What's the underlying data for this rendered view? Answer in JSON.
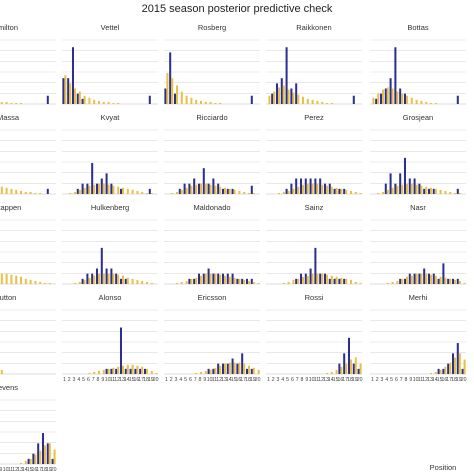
{
  "chart_data": {
    "type": "bar",
    "title": "2015 season posterior predictive check",
    "xlabel": "Position",
    "ylabel": "",
    "x": [
      1,
      2,
      3,
      4,
      5,
      6,
      7,
      8,
      9,
      10,
      11,
      12,
      13,
      14,
      15,
      16,
      17,
      18,
      19,
      20
    ],
    "x_tick_labels": [
      "1",
      "2",
      "3",
      "4",
      "5",
      "6",
      "7",
      "8",
      "9",
      "10",
      "11",
      "12",
      "13",
      "14",
      "15",
      "16",
      "17",
      "18",
      "19",
      "20"
    ],
    "ylim": [
      0,
      0.62
    ],
    "grid": true,
    "colors": {
      "observed": "#2b2f8f",
      "predicted": "#e9c046"
    },
    "panels": [
      {
        "name": "Hamilton",
        "label": "milton",
        "observed": [
          0.25,
          0.2,
          0.15,
          0.15,
          0.05,
          0,
          0,
          0,
          0,
          0,
          0,
          0,
          0,
          0,
          0,
          0,
          0,
          0,
          0.08,
          0
        ],
        "predicted": [
          0.3,
          0.18,
          0.12,
          0.09,
          0.07,
          0.05,
          0.04,
          0.03,
          0.02,
          0.02,
          0.01,
          0.01,
          0.01,
          0,
          0,
          0,
          0,
          0,
          0,
          0
        ]
      },
      {
        "name": "Vettel",
        "label": "Vettel",
        "observed": [
          0.25,
          0.25,
          0.55,
          0.1,
          0.05,
          0,
          0,
          0,
          0,
          0,
          0,
          0,
          0,
          0,
          0,
          0,
          0,
          0,
          0.08,
          0
        ],
        "predicted": [
          0.28,
          0.2,
          0.15,
          0.12,
          0.08,
          0.06,
          0.04,
          0.03,
          0.02,
          0.02,
          0.01,
          0.01,
          0,
          0,
          0,
          0,
          0,
          0,
          0,
          0
        ]
      },
      {
        "name": "Rosberg",
        "label": "Rosberg",
        "observed": [
          0.15,
          0.5,
          0.1,
          0,
          0,
          0,
          0,
          0,
          0,
          0,
          0,
          0,
          0,
          0,
          0,
          0,
          0,
          0,
          0.08,
          0
        ],
        "predicted": [
          0.3,
          0.25,
          0.18,
          0.12,
          0.08,
          0.06,
          0.04,
          0.03,
          0.02,
          0.02,
          0.01,
          0.01,
          0,
          0,
          0,
          0,
          0,
          0,
          0,
          0
        ]
      },
      {
        "name": "Raikkonen",
        "label": "Raikkonen",
        "observed": [
          0,
          0.1,
          0.2,
          0.25,
          0.55,
          0.15,
          0.2,
          0,
          0,
          0,
          0,
          0,
          0,
          0,
          0,
          0,
          0,
          0,
          0.08,
          0
        ],
        "predicted": [
          0.08,
          0.12,
          0.16,
          0.18,
          0.14,
          0.11,
          0.09,
          0.07,
          0.05,
          0.04,
          0.03,
          0.02,
          0.01,
          0.01,
          0,
          0,
          0,
          0,
          0,
          0
        ]
      },
      {
        "name": "Bottas",
        "label": "Bottas",
        "observed": [
          0,
          0.05,
          0.1,
          0.15,
          0.25,
          0.55,
          0.15,
          0.1,
          0,
          0,
          0,
          0,
          0,
          0,
          0,
          0,
          0,
          0,
          0.08,
          0
        ],
        "predicted": [
          0.06,
          0.1,
          0.14,
          0.16,
          0.15,
          0.12,
          0.1,
          0.08,
          0.06,
          0.04,
          0.03,
          0.02,
          0.01,
          0.01,
          0,
          0,
          0,
          0,
          0,
          0
        ]
      },
      {
        "name": "Massa",
        "label": "Massa",
        "observed": [
          0,
          0,
          0,
          0.12,
          0.1,
          0.1,
          0,
          0,
          0,
          0,
          0,
          0,
          0,
          0,
          0,
          0,
          0,
          0,
          0.05,
          0
        ],
        "predicted": [
          0,
          0.02,
          0.05,
          0.09,
          0.1,
          0.1,
          0.09,
          0.08,
          0.07,
          0.06,
          0.05,
          0.04,
          0.03,
          0.02,
          0.02,
          0.01,
          0.01,
          0,
          0,
          0
        ]
      },
      {
        "name": "Kvyat",
        "label": "Kvyat",
        "observed": [
          0,
          0,
          0,
          0.05,
          0.1,
          0.1,
          0.3,
          0.1,
          0.15,
          0.2,
          0.1,
          0,
          0.05,
          0,
          0,
          0,
          0,
          0,
          0.05,
          0
        ],
        "predicted": [
          0,
          0.01,
          0.02,
          0.04,
          0.06,
          0.08,
          0.09,
          0.1,
          0.1,
          0.09,
          0.08,
          0.07,
          0.06,
          0.05,
          0.04,
          0.03,
          0.02,
          0.01,
          0.01,
          0
        ]
      },
      {
        "name": "Ricciardo",
        "label": "Ricciardo",
        "observed": [
          0,
          0,
          0,
          0.05,
          0.1,
          0.1,
          0.15,
          0.1,
          0.25,
          0.1,
          0.15,
          0.1,
          0.05,
          0.05,
          0.05,
          0,
          0,
          0,
          0.08,
          0
        ],
        "predicted": [
          0,
          0.01,
          0.02,
          0.04,
          0.06,
          0.08,
          0.09,
          0.1,
          0.1,
          0.09,
          0.08,
          0.07,
          0.06,
          0.05,
          0.04,
          0.03,
          0.02,
          0.01,
          0.01,
          0
        ]
      },
      {
        "name": "Perez",
        "label": "Perez",
        "observed": [
          0,
          0,
          0,
          0,
          0.05,
          0.1,
          0.15,
          0.15,
          0.15,
          0.15,
          0.15,
          0.15,
          0.1,
          0.1,
          0.05,
          0.05,
          0.05,
          0,
          0,
          0
        ],
        "predicted": [
          0,
          0,
          0.01,
          0.02,
          0.03,
          0.05,
          0.07,
          0.09,
          0.1,
          0.1,
          0.1,
          0.09,
          0.08,
          0.07,
          0.06,
          0.05,
          0.04,
          0.03,
          0.02,
          0.01
        ]
      },
      {
        "name": "Grosjean",
        "label": "Grosjean",
        "observed": [
          0,
          0,
          0,
          0.1,
          0.2,
          0.1,
          0.2,
          0.35,
          0.15,
          0.15,
          0.1,
          0.05,
          0.05,
          0.05,
          0,
          0,
          0,
          0,
          0.05,
          0
        ],
        "predicted": [
          0,
          0.01,
          0.02,
          0.04,
          0.06,
          0.08,
          0.09,
          0.1,
          0.1,
          0.09,
          0.08,
          0.07,
          0.06,
          0.05,
          0.04,
          0.03,
          0.02,
          0.01,
          0.01,
          0
        ]
      },
      {
        "name": "Verstappen",
        "label": "stappen",
        "observed": [
          0,
          0,
          0,
          0.08,
          0.08,
          0.08,
          0.08,
          0.08,
          0,
          0,
          0,
          0,
          0,
          0,
          0,
          0,
          0,
          0,
          0,
          0
        ],
        "predicted": [
          0,
          0.01,
          0.02,
          0.03,
          0.05,
          0.07,
          0.09,
          0.1,
          0.1,
          0.1,
          0.09,
          0.08,
          0.07,
          0.05,
          0.04,
          0.03,
          0.02,
          0.01,
          0.01,
          0
        ]
      },
      {
        "name": "Hulkenberg",
        "label": "Hulkenberg",
        "observed": [
          0,
          0,
          0,
          0,
          0.05,
          0.1,
          0.1,
          0.15,
          0.35,
          0.15,
          0.15,
          0.1,
          0.05,
          0.05,
          0,
          0,
          0,
          0,
          0,
          0
        ],
        "predicted": [
          0,
          0,
          0.01,
          0.02,
          0.04,
          0.06,
          0.08,
          0.1,
          0.1,
          0.1,
          0.1,
          0.09,
          0.08,
          0.06,
          0.05,
          0.04,
          0.03,
          0.02,
          0.01,
          0
        ]
      },
      {
        "name": "Maldonado",
        "label": "Maldonado",
        "observed": [
          0,
          0,
          0,
          0,
          0,
          0.05,
          0.05,
          0.1,
          0.1,
          0.15,
          0.1,
          0.1,
          0.1,
          0.1,
          0.1,
          0.05,
          0.05,
          0.05,
          0.05,
          0
        ],
        "predicted": [
          0,
          0,
          0.01,
          0.02,
          0.03,
          0.05,
          0.06,
          0.08,
          0.1,
          0.1,
          0.1,
          0.09,
          0.08,
          0.07,
          0.06,
          0.05,
          0.04,
          0.03,
          0.02,
          0.01
        ]
      },
      {
        "name": "Sainz",
        "label": "Sainz",
        "observed": [
          0,
          0,
          0,
          0,
          0,
          0,
          0.05,
          0.1,
          0.1,
          0.15,
          0.35,
          0.1,
          0.1,
          0.05,
          0.05,
          0.05,
          0.05,
          0,
          0,
          0
        ],
        "predicted": [
          0,
          0,
          0,
          0.01,
          0.02,
          0.04,
          0.05,
          0.07,
          0.08,
          0.1,
          0.1,
          0.1,
          0.09,
          0.08,
          0.07,
          0.06,
          0.05,
          0.04,
          0.02,
          0.01
        ]
      },
      {
        "name": "Nasr",
        "label": "Nasr",
        "observed": [
          0,
          0,
          0,
          0,
          0,
          0,
          0.05,
          0.05,
          0.1,
          0.1,
          0.1,
          0.15,
          0.1,
          0.1,
          0.05,
          0.2,
          0.05,
          0.05,
          0.05,
          0
        ],
        "predicted": [
          0,
          0,
          0,
          0.01,
          0.02,
          0.03,
          0.05,
          0.07,
          0.08,
          0.1,
          0.1,
          0.1,
          0.09,
          0.08,
          0.07,
          0.06,
          0.05,
          0.04,
          0.03,
          0.01
        ]
      },
      {
        "name": "Button",
        "label": "utton",
        "observed": [
          0,
          0,
          0,
          0.05,
          0.1,
          0.45,
          0.1,
          0.05,
          0,
          0,
          0,
          0,
          0,
          0,
          0,
          0,
          0,
          0,
          0,
          0
        ],
        "predicted": [
          0,
          0.01,
          0.02,
          0.03,
          0.05,
          0.08,
          0.12,
          0.08,
          0.04,
          0,
          0,
          0,
          0,
          0,
          0,
          0,
          0,
          0,
          0,
          0
        ]
      },
      {
        "name": "Alonso",
        "label": "Alonso",
        "observed": [
          0,
          0,
          0,
          0,
          0,
          0,
          0,
          0,
          0,
          0.05,
          0.05,
          0.05,
          0.45,
          0.05,
          0.05,
          0.05,
          0.05,
          0.05,
          0,
          0
        ],
        "predicted": [
          0,
          0,
          0,
          0,
          0,
          0.01,
          0.02,
          0.03,
          0.04,
          0.05,
          0.06,
          0.07,
          0.08,
          0.09,
          0.09,
          0.08,
          0.07,
          0.05,
          0.03,
          0.01
        ]
      },
      {
        "name": "Ericsson",
        "label": "Ericsson",
        "observed": [
          0,
          0,
          0,
          0,
          0,
          0,
          0,
          0,
          0,
          0.05,
          0.05,
          0.1,
          0.1,
          0.1,
          0.15,
          0.1,
          0.2,
          0.05,
          0.05,
          0
        ],
        "predicted": [
          0,
          0,
          0,
          0,
          0,
          0,
          0.01,
          0.02,
          0.03,
          0.04,
          0.06,
          0.08,
          0.1,
          0.11,
          0.11,
          0.11,
          0.1,
          0.08,
          0.06,
          0.04
        ]
      },
      {
        "name": "Rossi",
        "label": "Rossi",
        "observed": [
          0,
          0,
          0,
          0,
          0,
          0,
          0,
          0,
          0,
          0,
          0,
          0,
          0,
          0,
          0,
          0.1,
          0.2,
          0.35,
          0.1,
          0.05
        ],
        "predicted": [
          0,
          0,
          0,
          0,
          0,
          0,
          0,
          0,
          0,
          0,
          0,
          0,
          0.01,
          0.02,
          0.04,
          0.07,
          0.1,
          0.14,
          0.16,
          0.1
        ]
      },
      {
        "name": "Merhi",
        "label": "Merhi",
        "observed": [
          0,
          0,
          0,
          0,
          0,
          0,
          0,
          0,
          0,
          0,
          0,
          0,
          0,
          0,
          0.05,
          0.05,
          0.1,
          0.2,
          0.3,
          0.05
        ],
        "predicted": [
          0,
          0,
          0,
          0,
          0,
          0,
          0,
          0,
          0,
          0,
          0,
          0,
          0.01,
          0.02,
          0.04,
          0.07,
          0.11,
          0.16,
          0.2,
          0.14
        ]
      },
      {
        "name": "Stevens",
        "label": "evens",
        "observed": [
          0,
          0,
          0,
          0,
          0,
          0,
          0,
          0,
          0,
          0,
          0,
          0,
          0,
          0,
          0.05,
          0.1,
          0.2,
          0.3,
          0.2,
          0.05
        ],
        "predicted": [
          0,
          0,
          0,
          0,
          0,
          0,
          0,
          0,
          0,
          0,
          0,
          0,
          0.01,
          0.03,
          0.05,
          0.09,
          0.13,
          0.18,
          0.2,
          0.14
        ]
      }
    ]
  }
}
